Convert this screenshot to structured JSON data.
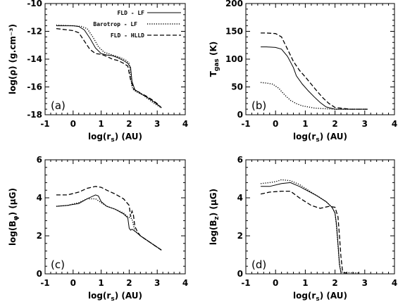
{
  "chart_data": [
    {
      "type": "line",
      "panel_label": "(a)",
      "xlabel": "log(r_s) (AU)",
      "ylabel": "log(ρ) (g.cm⁻³)",
      "xlim": [
        -1,
        4
      ],
      "ylim": [
        -18,
        -10
      ],
      "xticks": [
        -1,
        0,
        1,
        2,
        3,
        4
      ],
      "yticks": [
        -18,
        -16,
        -14,
        -12,
        -10
      ],
      "xtick_labels": [
        "-1",
        "0",
        "1",
        "2",
        "3",
        "4"
      ],
      "ytick_labels": [
        "-18",
        "-16",
        "-14",
        "-12",
        "-10"
      ],
      "legend": {
        "placement": "top-right",
        "entries": [
          {
            "label": "FLD - LF",
            "style": "solid"
          },
          {
            "label": "Barotrop - LF",
            "style": "dotted"
          },
          {
            "label": "FLD - HLLD",
            "style": "dashed"
          }
        ]
      },
      "series": [
        {
          "name": "FLD - LF",
          "style": "solid",
          "x": [
            -0.6,
            0.0,
            0.2,
            0.4,
            0.6,
            0.8,
            1.0,
            1.2,
            1.4,
            1.6,
            1.8,
            1.95,
            2.05,
            2.1,
            2.2,
            2.4,
            2.6,
            2.8,
            3.0,
            3.15
          ],
          "y": [
            -11.6,
            -11.6,
            -11.65,
            -11.9,
            -12.5,
            -13.2,
            -13.6,
            -13.7,
            -13.75,
            -13.9,
            -14.1,
            -14.3,
            -14.6,
            -15.6,
            -16.2,
            -16.45,
            -16.7,
            -16.95,
            -17.25,
            -17.5
          ]
        },
        {
          "name": "Barotrop - LF",
          "style": "dotted",
          "x": [
            -0.6,
            0.0,
            0.3,
            0.5,
            0.7,
            0.9,
            1.1,
            1.4,
            1.7,
            1.9,
            2.0,
            2.05,
            2.1,
            2.15,
            2.3,
            2.5,
            2.7,
            2.9,
            3.15
          ],
          "y": [
            -11.55,
            -11.6,
            -11.65,
            -11.8,
            -12.4,
            -13.1,
            -13.5,
            -13.7,
            -13.9,
            -14.1,
            -14.3,
            -15.2,
            -16.0,
            -16.2,
            -16.4,
            -16.6,
            -16.9,
            -17.2,
            -17.5
          ]
        },
        {
          "name": "FLD - HLLD",
          "style": "dashed",
          "x": [
            -0.6,
            -0.2,
            0.0,
            0.2,
            0.4,
            0.5,
            0.6,
            0.8,
            1.0,
            1.2,
            1.4,
            1.6,
            1.8,
            1.95,
            2.05,
            2.15,
            2.25,
            2.3,
            2.4,
            2.6,
            2.8,
            3.0,
            3.15
          ],
          "y": [
            -11.8,
            -11.9,
            -11.95,
            -12.1,
            -12.7,
            -13.0,
            -13.3,
            -13.6,
            -13.65,
            -13.8,
            -14.0,
            -14.1,
            -14.3,
            -14.5,
            -15.5,
            -16.1,
            -16.3,
            -16.3,
            -16.45,
            -16.65,
            -16.9,
            -17.2,
            -17.5
          ]
        }
      ]
    },
    {
      "type": "line",
      "panel_label": "(b)",
      "xlabel": "log(r_s) (AU)",
      "ylabel": "T_gas (K)",
      "xlim": [
        -1,
        4
      ],
      "ylim": [
        0,
        200
      ],
      "xticks": [
        -1,
        0,
        1,
        2,
        3,
        4
      ],
      "yticks": [
        0,
        50,
        100,
        150,
        200
      ],
      "xtick_labels": [
        "-1",
        "0",
        "1",
        "2",
        "3",
        "4"
      ],
      "ytick_labels": [
        "0",
        "50",
        "100",
        "150",
        "200"
      ],
      "series": [
        {
          "name": "FLD - LF",
          "style": "solid",
          "x": [
            -0.5,
            -0.3,
            0.0,
            0.2,
            0.4,
            0.6,
            0.7,
            0.9,
            1.1,
            1.3,
            1.5,
            1.7,
            2.0,
            2.5,
            3.1
          ],
          "y": [
            122,
            122,
            121,
            118,
            105,
            85,
            70,
            55,
            43,
            32,
            22,
            14,
            10,
            10,
            10
          ]
        },
        {
          "name": "Barotrop - LF",
          "style": "dotted",
          "x": [
            -0.5,
            -0.3,
            -0.1,
            0.1,
            0.3,
            0.5,
            0.7,
            0.9,
            1.1,
            1.3,
            1.6,
            2.0,
            2.5,
            3.1
          ],
          "y": [
            58,
            57,
            55,
            48,
            36,
            26,
            20,
            16,
            14,
            12,
            11,
            10,
            10,
            10
          ]
        },
        {
          "name": "FLD - HLLD",
          "style": "dashed",
          "x": [
            -0.5,
            -0.3,
            0.0,
            0.2,
            0.4,
            0.6,
            0.8,
            1.0,
            1.2,
            1.4,
            1.6,
            1.8,
            2.0,
            2.5,
            3.1
          ],
          "y": [
            147,
            147,
            146,
            140,
            118,
            96,
            80,
            68,
            55,
            42,
            30,
            20,
            13,
            10,
            10
          ]
        }
      ]
    },
    {
      "type": "line",
      "panel_label": "(c)",
      "xlabel": "log(r_s) (AU)",
      "ylabel": "log(B_φ) (μG)",
      "xlim": [
        -1,
        4
      ],
      "ylim": [
        0,
        6
      ],
      "xticks": [
        -1,
        0,
        1,
        2,
        3,
        4
      ],
      "yticks": [
        0,
        2,
        4,
        6
      ],
      "xtick_labels": [
        "-1",
        "0",
        "1",
        "2",
        "3",
        "4"
      ],
      "ytick_labels": [
        "0",
        "2",
        "4",
        "6"
      ],
      "series": [
        {
          "name": "FLD - LF",
          "style": "solid",
          "x": [
            -0.6,
            -0.2,
            0.2,
            0.5,
            0.8,
            0.9,
            1.0,
            1.2,
            1.5,
            1.8,
            1.95,
            2.0,
            2.05,
            2.1,
            2.2,
            2.4,
            2.6,
            2.8,
            3.0,
            3.15
          ],
          "y": [
            3.55,
            3.6,
            3.7,
            3.95,
            4.15,
            4.1,
            3.8,
            3.55,
            3.4,
            3.15,
            2.95,
            2.4,
            2.3,
            2.35,
            2.25,
            2.0,
            1.8,
            1.6,
            1.4,
            1.25
          ]
        },
        {
          "name": "Barotrop - LF",
          "style": "dotted",
          "x": [
            -0.6,
            -0.2,
            0.2,
            0.5,
            0.8,
            1.0,
            1.2,
            1.5,
            1.8,
            1.95,
            2.1,
            2.2,
            2.3,
            2.4,
            2.6,
            2.8,
            3.0,
            3.15
          ],
          "y": [
            3.55,
            3.6,
            3.75,
            3.95,
            3.95,
            3.75,
            3.55,
            3.4,
            3.2,
            3.0,
            2.9,
            2.25,
            2.15,
            2.0,
            1.8,
            1.6,
            1.4,
            1.25
          ]
        },
        {
          "name": "FLD - HLLD",
          "style": "dashed",
          "x": [
            -0.6,
            -0.2,
            0.2,
            0.5,
            0.8,
            1.0,
            1.2,
            1.5,
            1.8,
            2.0,
            2.05,
            2.1,
            2.15,
            2.2,
            2.3,
            2.4,
            2.6,
            2.8,
            3.0,
            3.15
          ],
          "y": [
            4.15,
            4.15,
            4.3,
            4.5,
            4.6,
            4.55,
            4.4,
            4.2,
            3.95,
            3.6,
            3.0,
            3.3,
            3.1,
            2.5,
            2.2,
            2.0,
            1.8,
            1.6,
            1.4,
            1.25
          ]
        }
      ]
    },
    {
      "type": "line",
      "panel_label": "(d)",
      "xlabel": "log(r_s) (AU)",
      "ylabel": "log(B_z) (μG)",
      "xlim": [
        -1,
        4
      ],
      "ylim": [
        0,
        6
      ],
      "xticks": [
        -1,
        0,
        1,
        2,
        3,
        4
      ],
      "yticks": [
        0,
        2,
        4,
        6
      ],
      "xtick_labels": [
        "-1",
        "0",
        "1",
        "2",
        "3",
        "4"
      ],
      "ytick_labels": [
        "0",
        "2",
        "4",
        "6"
      ],
      "series": [
        {
          "name": "FLD - LF",
          "style": "solid",
          "x": [
            -0.5,
            -0.2,
            0.2,
            0.5,
            0.8,
            1.1,
            1.4,
            1.7,
            1.9,
            2.0,
            2.05,
            2.1,
            2.15,
            2.2
          ],
          "y": [
            4.6,
            4.6,
            4.75,
            4.8,
            4.6,
            4.35,
            4.1,
            3.8,
            3.5,
            3.2,
            2.6,
            1.6,
            0.5,
            0.05
          ]
        },
        {
          "name": "Barotrop - LF",
          "style": "dotted",
          "x": [
            -0.5,
            -0.2,
            0.0,
            0.2,
            0.5,
            0.8,
            1.1,
            1.4,
            1.7,
            1.9,
            2.0,
            2.05,
            2.1,
            2.15,
            2.2,
            2.3,
            2.5,
            2.8
          ],
          "y": [
            4.75,
            4.8,
            4.85,
            4.95,
            4.9,
            4.7,
            4.4,
            4.1,
            3.8,
            3.5,
            3.2,
            2.5,
            1.5,
            0.5,
            0.1,
            0.08,
            0.06,
            0.05
          ]
        },
        {
          "name": "FLD - HLLD",
          "style": "dashed",
          "x": [
            -0.5,
            -0.2,
            0.2,
            0.5,
            0.8,
            1.0,
            1.2,
            1.5,
            1.8,
            2.0,
            2.1,
            2.15,
            2.2,
            2.25,
            2.3,
            2.4
          ],
          "y": [
            4.2,
            4.3,
            4.35,
            4.35,
            4.0,
            3.8,
            3.6,
            3.45,
            3.55,
            3.5,
            3.0,
            2.0,
            0.9,
            0.2,
            0.05,
            0.05
          ]
        }
      ]
    }
  ]
}
